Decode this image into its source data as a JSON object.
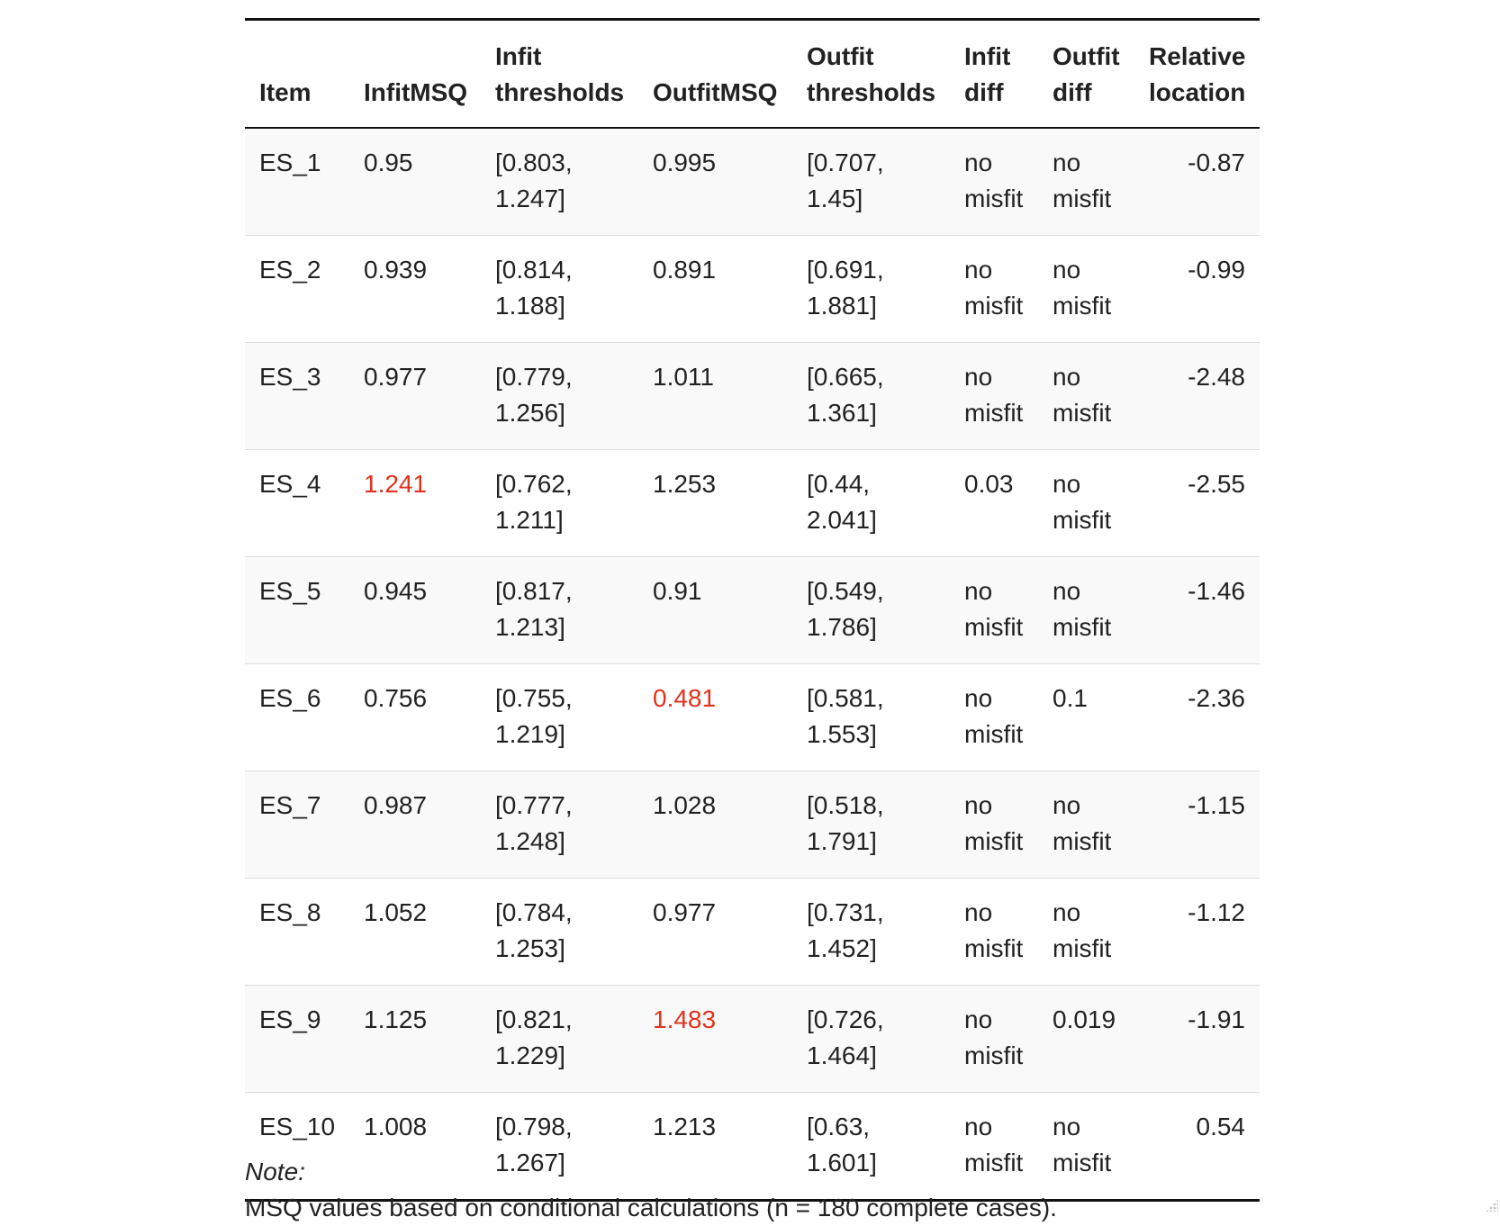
{
  "columns": [
    {
      "label": "Item",
      "align": "left"
    },
    {
      "label": "InfitMSQ",
      "align": "left"
    },
    {
      "label": "Infit thresholds",
      "align": "left"
    },
    {
      "label": "OutfitMSQ",
      "align": "left"
    },
    {
      "label": "Outfit thresholds",
      "align": "left"
    },
    {
      "label": "Infit diff",
      "align": "left"
    },
    {
      "label": "Outfit diff",
      "align": "left"
    },
    {
      "label": "Relative location",
      "align": "right"
    }
  ],
  "rows": [
    {
      "item": "ES_1",
      "infit_msq": "0.95",
      "infit_thresholds": "[0.803, 1.247]",
      "outfit_msq": "0.995",
      "outfit_thresholds": "[0.707, 1.45]",
      "infit_diff": "no misfit",
      "outfit_diff": "no misfit",
      "relative_location": "-0.87",
      "infit_flag": false,
      "outfit_flag": false
    },
    {
      "item": "ES_2",
      "infit_msq": "0.939",
      "infit_thresholds": "[0.814, 1.188]",
      "outfit_msq": "0.891",
      "outfit_thresholds": "[0.691, 1.881]",
      "infit_diff": "no misfit",
      "outfit_diff": "no misfit",
      "relative_location": "-0.99",
      "infit_flag": false,
      "outfit_flag": false
    },
    {
      "item": "ES_3",
      "infit_msq": "0.977",
      "infit_thresholds": "[0.779, 1.256]",
      "outfit_msq": "1.011",
      "outfit_thresholds": "[0.665, 1.361]",
      "infit_diff": "no misfit",
      "outfit_diff": "no misfit",
      "relative_location": "-2.48",
      "infit_flag": false,
      "outfit_flag": false
    },
    {
      "item": "ES_4",
      "infit_msq": "1.241",
      "infit_thresholds": "[0.762, 1.211]",
      "outfit_msq": "1.253",
      "outfit_thresholds": "[0.44, 2.041]",
      "infit_diff": "0.03",
      "outfit_diff": "no misfit",
      "relative_location": "-2.55",
      "infit_flag": true,
      "outfit_flag": false
    },
    {
      "item": "ES_5",
      "infit_msq": "0.945",
      "infit_thresholds": "[0.817, 1.213]",
      "outfit_msq": "0.91",
      "outfit_thresholds": "[0.549, 1.786]",
      "infit_diff": "no misfit",
      "outfit_diff": "no misfit",
      "relative_location": "-1.46",
      "infit_flag": false,
      "outfit_flag": false
    },
    {
      "item": "ES_6",
      "infit_msq": "0.756",
      "infit_thresholds": "[0.755, 1.219]",
      "outfit_msq": "0.481",
      "outfit_thresholds": "[0.581, 1.553]",
      "infit_diff": "no misfit",
      "outfit_diff": "0.1",
      "relative_location": "-2.36",
      "infit_flag": false,
      "outfit_flag": true
    },
    {
      "item": "ES_7",
      "infit_msq": "0.987",
      "infit_thresholds": "[0.777, 1.248]",
      "outfit_msq": "1.028",
      "outfit_thresholds": "[0.518, 1.791]",
      "infit_diff": "no misfit",
      "outfit_diff": "no misfit",
      "relative_location": "-1.15",
      "infit_flag": false,
      "outfit_flag": false
    },
    {
      "item": "ES_8",
      "infit_msq": "1.052",
      "infit_thresholds": "[0.784, 1.253]",
      "outfit_msq": "0.977",
      "outfit_thresholds": "[0.731, 1.452]",
      "infit_diff": "no misfit",
      "outfit_diff": "no misfit",
      "relative_location": "-1.12",
      "infit_flag": false,
      "outfit_flag": false
    },
    {
      "item": "ES_9",
      "infit_msq": "1.125",
      "infit_thresholds": "[0.821, 1.229]",
      "outfit_msq": "1.483",
      "outfit_thresholds": "[0.726, 1.464]",
      "infit_diff": "no misfit",
      "outfit_diff": "0.019",
      "relative_location": "-1.91",
      "infit_flag": false,
      "outfit_flag": true
    },
    {
      "item": "ES_10",
      "infit_msq": "1.008",
      "infit_thresholds": "[0.798, 1.267]",
      "outfit_msq": "1.213",
      "outfit_thresholds": "[0.63, 1.601]",
      "infit_diff": "no misfit",
      "outfit_diff": "no misfit",
      "relative_location": "0.54",
      "infit_flag": false,
      "outfit_flag": false
    }
  ],
  "note": {
    "label": "Note:",
    "text": "MSQ values based on conditional calculations (n = 180 complete cases)."
  },
  "colors": {
    "flag": "#e0321e",
    "text": "#222222",
    "stripe": "#f9f9f9",
    "rule": "#111111"
  }
}
